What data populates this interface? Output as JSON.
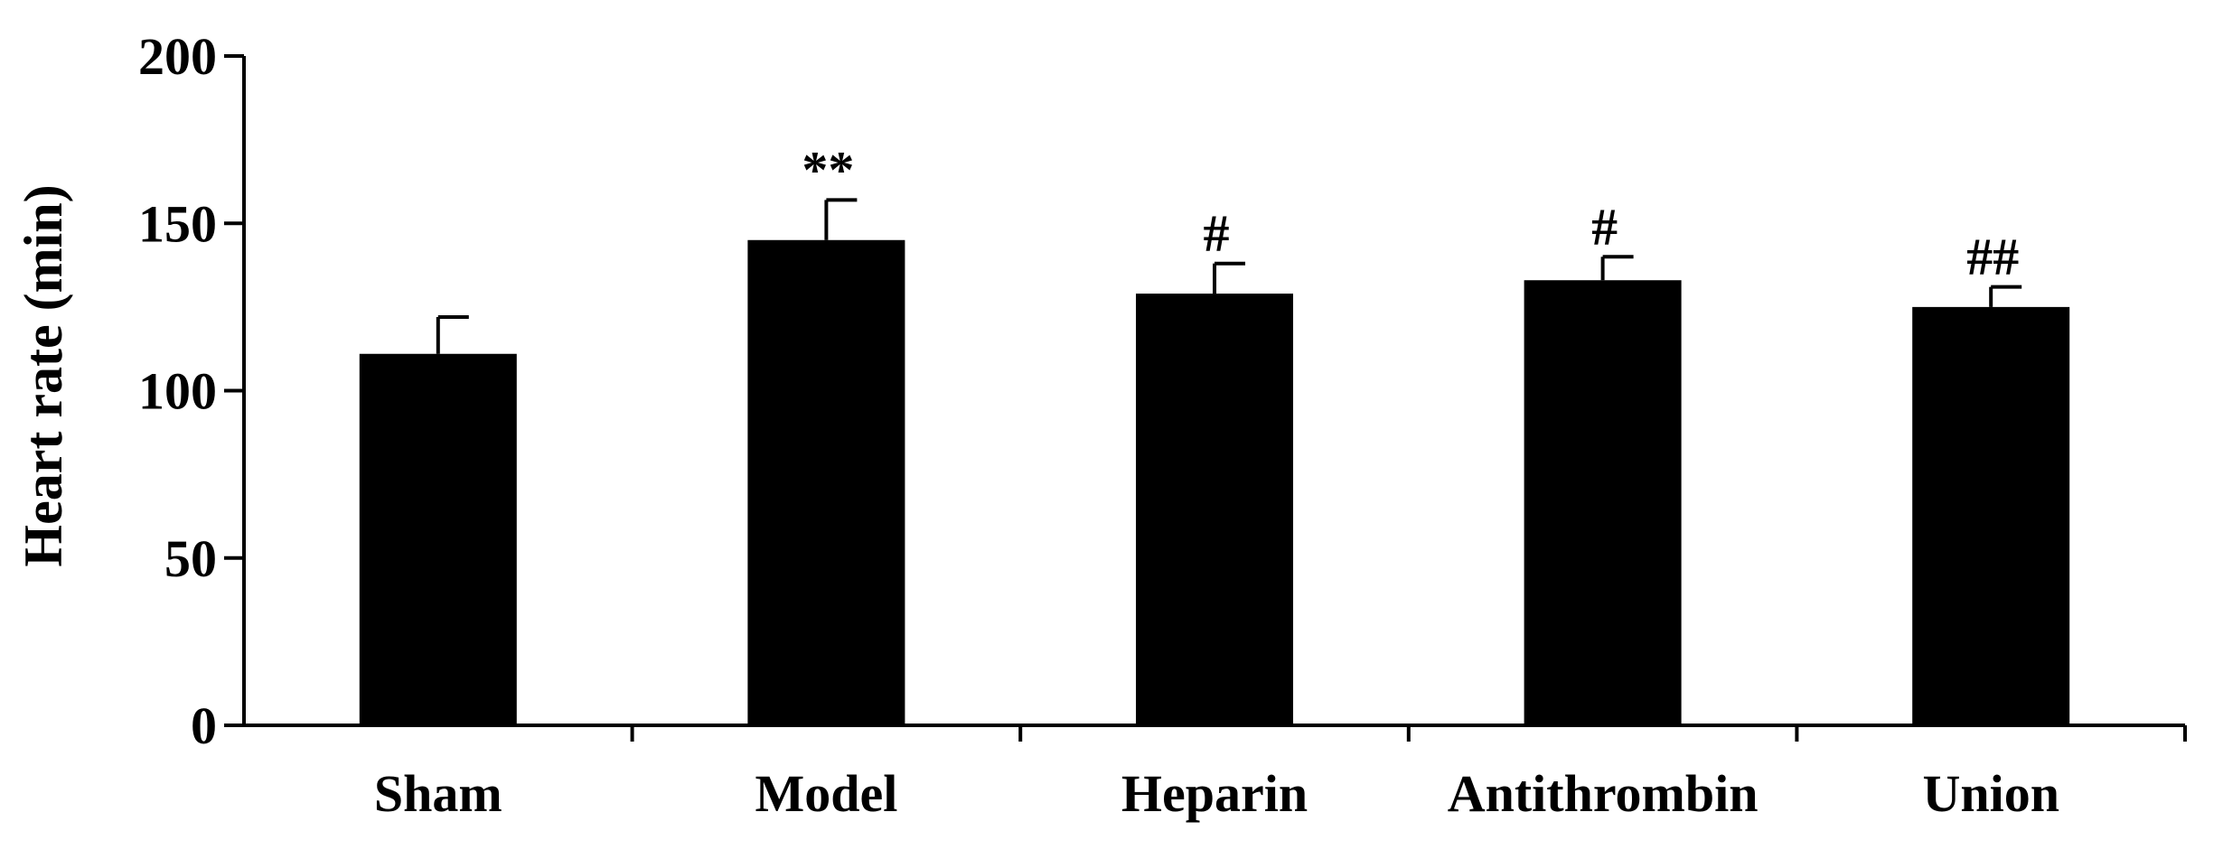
{
  "chart_data": {
    "type": "bar",
    "ylabel": "Heart rate (min)",
    "xlabel": "",
    "ylim": [
      0,
      200
    ],
    "yticks": [
      0,
      50,
      100,
      150,
      200
    ],
    "grid": false,
    "legend": "none",
    "categories": [
      "Sham",
      "Model",
      "Heparin",
      "Antithrombin",
      "Union"
    ],
    "values": [
      111,
      145,
      129,
      133,
      125
    ],
    "errors": [
      11,
      12,
      9,
      7,
      6
    ],
    "significance": [
      "",
      "**",
      "#",
      "#",
      "##"
    ],
    "bar_color": "#000000"
  }
}
